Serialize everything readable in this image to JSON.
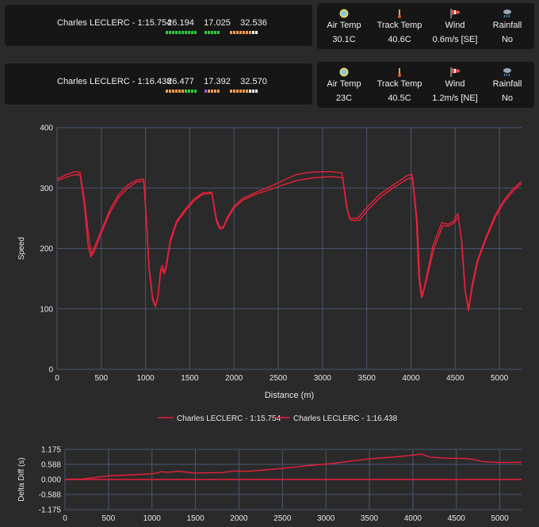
{
  "laps": [
    {
      "name": "Charles LECLERC - 1:15.754",
      "sectors": [
        "26.194",
        "17.025",
        "32.536"
      ],
      "minisectors": [
        [
          "#2ecc40",
          "#2ecc40",
          "#2ecc40",
          "#2ecc40",
          "#2ecc40",
          "#2ecc40",
          "#2ecc40",
          "#2ecc40",
          "#2ecc40",
          "#2ecc40"
        ],
        [
          "#2ecc40",
          "#2ecc40",
          "#2ecc40",
          "#2ecc40",
          "#2ecc40"
        ],
        [
          "#f39c50",
          "#f39c50",
          "#f39c50",
          "#f39c50",
          "#f39c50",
          "#f39c50",
          "#f39c50",
          "#ffffff",
          "#ffffff"
        ]
      ],
      "weather": {
        "air_temp_label": "Air Temp",
        "air_temp": "30.1C",
        "track_temp_label": "Track Temp",
        "track_temp": "40.6C",
        "wind_label": "Wind",
        "wind": "0.6m/s [SE]",
        "rainfall_label": "Rainfall",
        "rainfall": "No"
      }
    },
    {
      "name": "Charles LECLERC - 1:16.438",
      "sectors": [
        "26.477",
        "17.392",
        "32.570"
      ],
      "minisectors": [
        [
          "#f39c50",
          "#f39c50",
          "#f39c50",
          "#f39c50",
          "#f39c50",
          "#f39c50",
          "#2ecc40",
          "#2ecc40",
          "#2ecc40",
          "#2ecc40"
        ],
        [
          "#9b59d6",
          "#f39c50",
          "#f39c50",
          "#f39c50",
          "#f39c50"
        ],
        [
          "#f39c50",
          "#f39c50",
          "#f39c50",
          "#f39c50",
          "#f39c50",
          "#f39c50",
          "#ffffff",
          "#ffffff",
          "#ffffff"
        ]
      ],
      "weather": {
        "air_temp_label": "Air Temp",
        "air_temp": "23C",
        "track_temp_label": "Track Temp",
        "track_temp": "40.5C",
        "wind_label": "Wind",
        "wind": "1.2m/s [NE]",
        "rainfall_label": "Rainfall",
        "rainfall": "No"
      }
    }
  ],
  "icons": {
    "air_temp": "sun-cloud-icon",
    "track_temp": "thermometer-icon",
    "wind": "windsock-icon",
    "rainfall": "rain-cloud-icon"
  },
  "chart_data": [
    {
      "type": "line",
      "xlabel": "Distance (m)",
      "ylabel": "Speed",
      "xlim": [
        0,
        5250
      ],
      "ylim": [
        0,
        400
      ],
      "xticks": [
        0,
        500,
        1000,
        1500,
        2000,
        2500,
        3000,
        3500,
        4000,
        4500,
        5000
      ],
      "yticks": [
        0,
        100,
        200,
        300,
        400
      ],
      "grid": true,
      "legend_position": "bottom",
      "series": [
        {
          "name": "Charles LECLERC - 1:15.754",
          "color": "#e8203a",
          "x": [
            0,
            100,
            200,
            260,
            310,
            360,
            390,
            430,
            500,
            600,
            700,
            800,
            900,
            980,
            1010,
            1040,
            1080,
            1110,
            1140,
            1170,
            1190,
            1210,
            1230,
            1280,
            1350,
            1450,
            1550,
            1650,
            1750,
            1800,
            1840,
            1880,
            1920,
            2000,
            2100,
            2250,
            2400,
            2550,
            2700,
            2850,
            3000,
            3100,
            3220,
            3270,
            3300,
            3340,
            3400,
            3500,
            3650,
            3800,
            3950,
            4010,
            4060,
            4090,
            4120,
            4150,
            4250,
            4350,
            4420,
            4480,
            4530,
            4570,
            4610,
            4650,
            4690,
            4750,
            4850,
            4950,
            5050,
            5150,
            5250
          ],
          "values": [
            315,
            322,
            327,
            326,
            280,
            215,
            190,
            205,
            230,
            265,
            290,
            305,
            313,
            315,
            250,
            170,
            120,
            103,
            120,
            165,
            172,
            160,
            170,
            215,
            245,
            265,
            282,
            292,
            293,
            250,
            235,
            236,
            250,
            270,
            283,
            293,
            302,
            312,
            322,
            326,
            327,
            327,
            325,
            270,
            252,
            250,
            250,
            268,
            290,
            305,
            320,
            323,
            250,
            150,
            118,
            135,
            205,
            243,
            240,
            245,
            258,
            215,
            130,
            97,
            140,
            180,
            220,
            255,
            280,
            298,
            311
          ]
        },
        {
          "name": "Charles LECLERC - 1:16.438",
          "color": "#e8203a",
          "x": [
            0,
            100,
            200,
            260,
            310,
            350,
            380,
            420,
            500,
            600,
            700,
            800,
            900,
            980,
            1010,
            1040,
            1080,
            1110,
            1140,
            1170,
            1190,
            1210,
            1230,
            1280,
            1350,
            1450,
            1550,
            1650,
            1750,
            1800,
            1840,
            1880,
            1920,
            2000,
            2100,
            2250,
            2400,
            2550,
            2700,
            2850,
            3000,
            3100,
            3230,
            3280,
            3310,
            3350,
            3420,
            3520,
            3670,
            3820,
            3960,
            4020,
            4070,
            4100,
            4130,
            4160,
            4260,
            4360,
            4430,
            4490,
            4535,
            4575,
            4615,
            4655,
            4695,
            4755,
            4855,
            4955,
            5055,
            5155,
            5250
          ],
          "values": [
            312,
            318,
            322,
            322,
            270,
            205,
            186,
            195,
            225,
            260,
            285,
            300,
            310,
            311,
            245,
            165,
            115,
            104,
            118,
            160,
            166,
            158,
            165,
            210,
            242,
            262,
            279,
            290,
            291,
            245,
            232,
            234,
            247,
            267,
            280,
            290,
            297,
            305,
            312,
            316,
            318,
            319,
            317,
            265,
            248,
            246,
            247,
            265,
            287,
            302,
            315,
            317,
            245,
            147,
            121,
            138,
            200,
            238,
            237,
            243,
            252,
            210,
            128,
            100,
            138,
            178,
            218,
            252,
            277,
            295,
            308
          ]
        }
      ]
    },
    {
      "type": "line",
      "xlabel": "",
      "ylabel": "Delta Diff (s)",
      "xlim": [
        0,
        5250
      ],
      "ylim": [
        -1.175,
        1.175
      ],
      "xticks": [
        0,
        500,
        1000,
        1500,
        2000,
        2500,
        3000,
        3500,
        4000,
        4500,
        5000
      ],
      "yticks": [
        -1.175,
        -0.588,
        0.0,
        0.588,
        1.175
      ],
      "ytick_labels": [
        "-1.175",
        "-0.588",
        "0.000",
        "0.588",
        "1.175"
      ],
      "grid": true,
      "series": [
        {
          "name": "Charles LECLERC - 1:15.754",
          "color": "#e8203a",
          "x": [
            0,
            200,
            400,
            500,
            700,
            900,
            1050,
            1100,
            1200,
            1300,
            1500,
            1800,
            1950,
            2100,
            2300,
            2500,
            2800,
            3100,
            3300,
            3500,
            3800,
            4000,
            4100,
            4200,
            4400,
            4600,
            4700,
            4800,
            5000,
            5250
          ],
          "values": [
            0.0,
            0.02,
            0.1,
            0.14,
            0.17,
            0.2,
            0.24,
            0.3,
            0.28,
            0.32,
            0.25,
            0.27,
            0.33,
            0.32,
            0.37,
            0.43,
            0.54,
            0.63,
            0.72,
            0.8,
            0.88,
            0.95,
            0.99,
            0.87,
            0.83,
            0.82,
            0.78,
            0.7,
            0.66,
            0.67
          ]
        },
        {
          "name": "Charles LECLERC - 1:16.438",
          "color": "#e8203a",
          "x": [
            0,
            5250
          ],
          "values": [
            0.0,
            0.0
          ]
        }
      ]
    }
  ]
}
